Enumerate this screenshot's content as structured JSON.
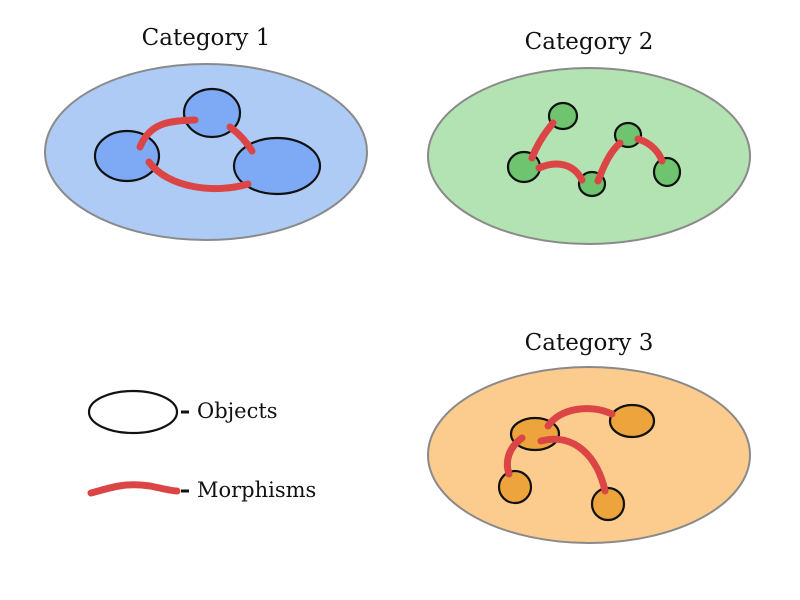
{
  "categories": [
    {
      "title": "Category 1",
      "fill": "#aecbf6",
      "object_fill": "#7eaaf5"
    },
    {
      "title": "Category 2",
      "fill": "#b3e2b3",
      "object_fill": "#6fc46f"
    },
    {
      "title": "Category 3",
      "fill": "#fccb8e",
      "object_fill": "#eea43d"
    }
  ],
  "legend": {
    "objects_label": "Objects",
    "morphisms_label": "Morphisms"
  },
  "colors": {
    "morphism": "#dc4545",
    "outline": "#111111",
    "region_outline": "#8a8a8a"
  }
}
